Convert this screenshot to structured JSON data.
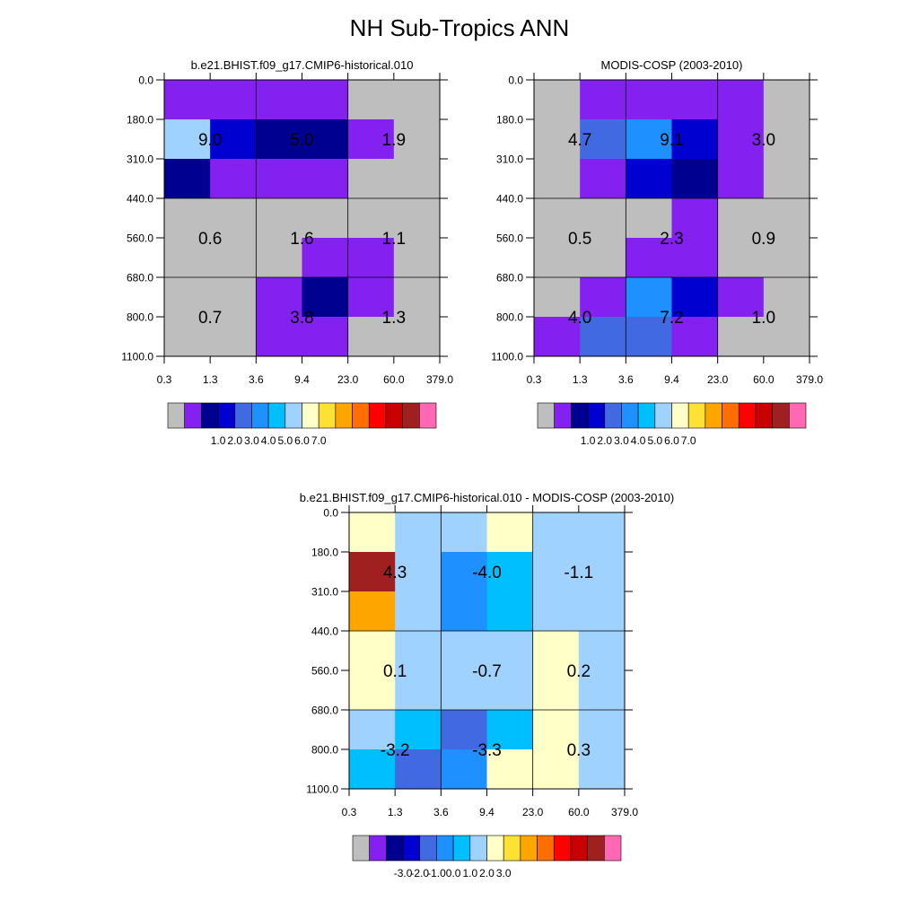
{
  "title": "NH Sub-Tropics ANN",
  "colors": {
    "palette": [
      "#bebebe",
      "#8420f0",
      "#000090",
      "#0000d0",
      "#4169e1",
      "#1e90ff",
      "#00bfff",
      "#a0d2ff",
      "#ffffc8",
      "#ffe135",
      "#ffa500",
      "#ff6e00",
      "#ff0000",
      "#c80000",
      "#a02020",
      "#ff69b4"
    ],
    "border": "#000000",
    "text": "#000000"
  },
  "chart_data": [
    {
      "type": "heatmap",
      "title": "b.e21.BHIST.f09_g17.CMIP6-historical.010",
      "x_tick_labels": [
        "0.3",
        "1.3",
        "3.6",
        "9.4",
        "23.0",
        "60.0",
        "379.0"
      ],
      "y_tick_labels": [
        "0.0",
        "180.0",
        "310.0",
        "440.0",
        "560.0",
        "680.0",
        "800.0",
        "1100.0"
      ],
      "cell_colors": [
        [
          1,
          1,
          1,
          1,
          0,
          0
        ],
        [
          7,
          3,
          2,
          2,
          1,
          0
        ],
        [
          2,
          1,
          1,
          1,
          0,
          0
        ],
        [
          0,
          0,
          0,
          0,
          0,
          0
        ],
        [
          0,
          0,
          0,
          1,
          1,
          0
        ],
        [
          0,
          0,
          1,
          2,
          1,
          0
        ],
        [
          0,
          0,
          1,
          1,
          0,
          0
        ]
      ],
      "box_labels": [
        [
          "9.0",
          "5.0",
          "1.9"
        ],
        [
          "0.6",
          "1.6",
          "1.1"
        ],
        [
          "0.7",
          "3.8",
          "1.3"
        ]
      ],
      "colorbar_labels": [
        "1.0",
        "2.0",
        "3.0",
        "4.0",
        "5.0",
        "6.0",
        "7.0"
      ]
    },
    {
      "type": "heatmap",
      "title": "MODIS-COSP (2003-2010)",
      "x_tick_labels": [
        "0.3",
        "1.3",
        "3.6",
        "9.4",
        "23.0",
        "60.0",
        "379.0"
      ],
      "y_tick_labels": [
        "0.0",
        "180.0",
        "310.0",
        "440.0",
        "560.0",
        "680.0",
        "800.0",
        "1100.0"
      ],
      "cell_colors": [
        [
          0,
          1,
          1,
          1,
          1,
          0
        ],
        [
          0,
          4,
          5,
          3,
          1,
          0
        ],
        [
          0,
          1,
          3,
          2,
          1,
          0
        ],
        [
          0,
          0,
          0,
          1,
          0,
          0
        ],
        [
          0,
          0,
          1,
          1,
          0,
          0
        ],
        [
          0,
          1,
          5,
          3,
          1,
          0
        ],
        [
          1,
          4,
          4,
          1,
          0,
          0
        ]
      ],
      "box_labels": [
        [
          "4.7",
          "9.1",
          "3.0"
        ],
        [
          "0.5",
          "2.3",
          "0.9"
        ],
        [
          "4.0",
          "7.2",
          "1.0"
        ]
      ],
      "colorbar_labels": [
        "1.0",
        "2.0",
        "3.0",
        "4.0",
        "5.0",
        "6.0",
        "7.0"
      ]
    },
    {
      "type": "heatmap",
      "title": "b.e21.BHIST.f09_g17.CMIP6-historical.010 - MODIS-COSP (2003-2010)",
      "x_tick_labels": [
        "0.3",
        "1.3",
        "3.6",
        "9.4",
        "23.0",
        "60.0",
        "379.0"
      ],
      "y_tick_labels": [
        "0.0",
        "180.0",
        "310.0",
        "440.0",
        "560.0",
        "680.0",
        "800.0",
        "1100.0"
      ],
      "cell_colors": [
        [
          8,
          7,
          7,
          8,
          7,
          7
        ],
        [
          14,
          7,
          5,
          6,
          7,
          7
        ],
        [
          10,
          7,
          5,
          6,
          7,
          7
        ],
        [
          8,
          7,
          7,
          7,
          8,
          7
        ],
        [
          8,
          7,
          7,
          7,
          8,
          7
        ],
        [
          7,
          6,
          4,
          6,
          8,
          7
        ],
        [
          6,
          4,
          5,
          8,
          8,
          7
        ]
      ],
      "box_labels": [
        [
          "4.3",
          "-4.0",
          "-1.1"
        ],
        [
          "0.1",
          "-0.7",
          "0.2"
        ],
        [
          "-3.2",
          "-3.3",
          "0.3"
        ]
      ],
      "colorbar_labels": [
        "-3.0",
        "-2.0",
        "-1.0",
        "0.0",
        "1.0",
        "2.0",
        "3.0"
      ]
    }
  ]
}
